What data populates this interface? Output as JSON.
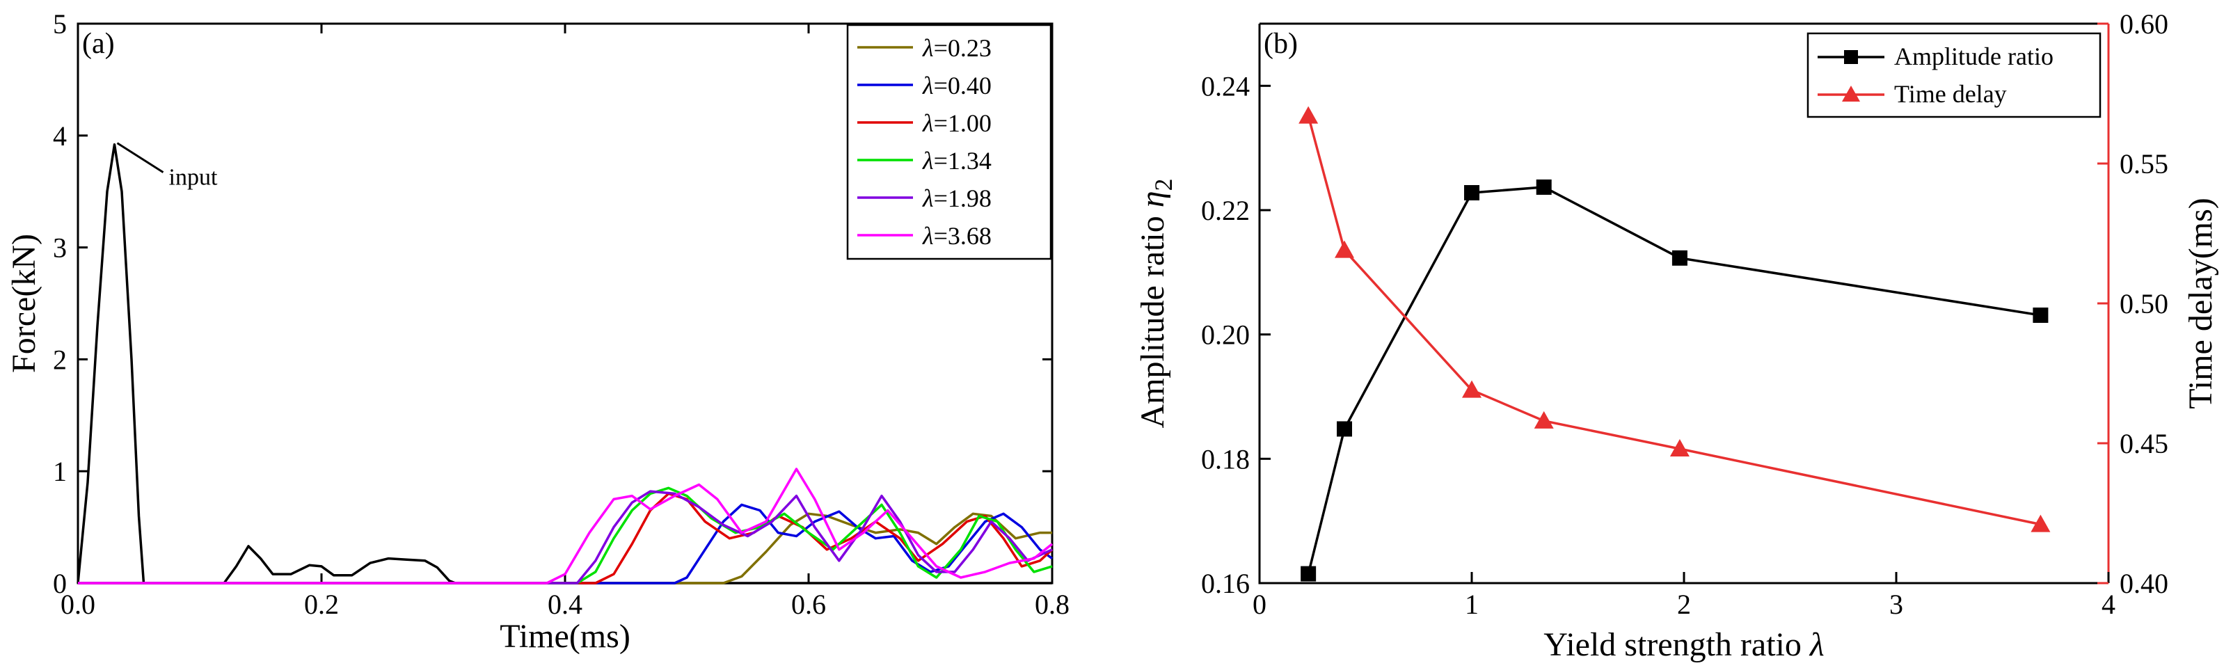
{
  "chart_data": [
    {
      "type": "line",
      "panel_label": "(a)",
      "xlabel": "Time(ms)",
      "ylabel": "Force(kN)",
      "xlim": [
        0.0,
        0.8
      ],
      "ylim": [
        0,
        5
      ],
      "xticks": [
        "0.0",
        "0.2",
        "0.4",
        "0.6",
        "0.8"
      ],
      "yticks": [
        "0",
        "1",
        "2",
        "3",
        "4",
        "5"
      ],
      "annotation": "input",
      "legend_position": "top-right",
      "series": [
        {
          "name": "input",
          "legend": false,
          "color": "#000000",
          "points": [
            [
              0,
              0
            ],
            [
              0.008,
              0.9
            ],
            [
              0.016,
              2.3
            ],
            [
              0.024,
              3.5
            ],
            [
              0.03,
              3.92
            ],
            [
              0.036,
              3.5
            ],
            [
              0.044,
              2.0
            ],
            [
              0.05,
              0.6
            ],
            [
              0.054,
              0
            ],
            [
              0.12,
              0
            ],
            [
              0.13,
              0.15
            ],
            [
              0.14,
              0.33
            ],
            [
              0.15,
              0.22
            ],
            [
              0.16,
              0.08
            ],
            [
              0.175,
              0.08
            ],
            [
              0.19,
              0.16
            ],
            [
              0.2,
              0.15
            ],
            [
              0.21,
              0.07
            ],
            [
              0.225,
              0.07
            ],
            [
              0.24,
              0.18
            ],
            [
              0.255,
              0.22
            ],
            [
              0.27,
              0.21
            ],
            [
              0.285,
              0.2
            ],
            [
              0.295,
              0.14
            ],
            [
              0.305,
              0.02
            ],
            [
              0.31,
              0
            ],
            [
              0.8,
              0
            ]
          ]
        },
        {
          "name": "λ=0.23",
          "legend_prefix": "λ",
          "legend_value": "=0.23",
          "color": "#807000",
          "points": [
            [
              0,
              0
            ],
            [
              0.53,
              0
            ],
            [
              0.545,
              0.06
            ],
            [
              0.565,
              0.28
            ],
            [
              0.585,
              0.52
            ],
            [
              0.6,
              0.62
            ],
            [
              0.615,
              0.6
            ],
            [
              0.635,
              0.52
            ],
            [
              0.655,
              0.45
            ],
            [
              0.675,
              0.48
            ],
            [
              0.69,
              0.45
            ],
            [
              0.705,
              0.35
            ],
            [
              0.72,
              0.5
            ],
            [
              0.735,
              0.62
            ],
            [
              0.75,
              0.6
            ],
            [
              0.77,
              0.4
            ],
            [
              0.79,
              0.45
            ],
            [
              0.8,
              0.45
            ]
          ]
        },
        {
          "name": "λ=0.40",
          "legend_prefix": "λ",
          "legend_value": "=0.40",
          "color": "#0000e0",
          "points": [
            [
              0,
              0
            ],
            [
              0.49,
              0
            ],
            [
              0.5,
              0.05
            ],
            [
              0.515,
              0.3
            ],
            [
              0.53,
              0.55
            ],
            [
              0.545,
              0.7
            ],
            [
              0.56,
              0.65
            ],
            [
              0.575,
              0.45
            ],
            [
              0.59,
              0.42
            ],
            [
              0.605,
              0.55
            ],
            [
              0.625,
              0.64
            ],
            [
              0.64,
              0.5
            ],
            [
              0.655,
              0.4
            ],
            [
              0.67,
              0.42
            ],
            [
              0.685,
              0.2
            ],
            [
              0.7,
              0.1
            ],
            [
              0.715,
              0.15
            ],
            [
              0.73,
              0.35
            ],
            [
              0.745,
              0.55
            ],
            [
              0.76,
              0.62
            ],
            [
              0.775,
              0.5
            ],
            [
              0.79,
              0.3
            ],
            [
              0.8,
              0.22
            ]
          ]
        },
        {
          "name": "λ=1.00",
          "legend_prefix": "λ",
          "legend_value": "=1.00",
          "color": "#e00000",
          "points": [
            [
              0,
              0
            ],
            [
              0.425,
              0
            ],
            [
              0.44,
              0.08
            ],
            [
              0.455,
              0.35
            ],
            [
              0.47,
              0.65
            ],
            [
              0.485,
              0.8
            ],
            [
              0.5,
              0.75
            ],
            [
              0.515,
              0.55
            ],
            [
              0.535,
              0.4
            ],
            [
              0.555,
              0.45
            ],
            [
              0.575,
              0.6
            ],
            [
              0.595,
              0.5
            ],
            [
              0.615,
              0.3
            ],
            [
              0.635,
              0.4
            ],
            [
              0.655,
              0.55
            ],
            [
              0.675,
              0.4
            ],
            [
              0.69,
              0.2
            ],
            [
              0.71,
              0.35
            ],
            [
              0.73,
              0.55
            ],
            [
              0.745,
              0.6
            ],
            [
              0.76,
              0.4
            ],
            [
              0.775,
              0.15
            ],
            [
              0.79,
              0.2
            ],
            [
              0.8,
              0.3
            ]
          ]
        },
        {
          "name": "λ=1.34",
          "legend_prefix": "λ",
          "legend_value": "=1.34",
          "color": "#00e000",
          "points": [
            [
              0,
              0
            ],
            [
              0.41,
              0
            ],
            [
              0.425,
              0.1
            ],
            [
              0.44,
              0.4
            ],
            [
              0.455,
              0.65
            ],
            [
              0.47,
              0.8
            ],
            [
              0.485,
              0.85
            ],
            [
              0.5,
              0.78
            ],
            [
              0.52,
              0.58
            ],
            [
              0.54,
              0.45
            ],
            [
              0.56,
              0.5
            ],
            [
              0.58,
              0.62
            ],
            [
              0.6,
              0.45
            ],
            [
              0.62,
              0.3
            ],
            [
              0.64,
              0.5
            ],
            [
              0.66,
              0.7
            ],
            [
              0.675,
              0.45
            ],
            [
              0.69,
              0.15
            ],
            [
              0.705,
              0.05
            ],
            [
              0.725,
              0.3
            ],
            [
              0.74,
              0.6
            ],
            [
              0.755,
              0.55
            ],
            [
              0.77,
              0.3
            ],
            [
              0.785,
              0.1
            ],
            [
              0.8,
              0.15
            ]
          ]
        },
        {
          "name": "λ=1.98",
          "legend_prefix": "λ",
          "legend_value": "=1.98",
          "color": "#8000e0",
          "points": [
            [
              0,
              0
            ],
            [
              0.41,
              0
            ],
            [
              0.425,
              0.2
            ],
            [
              0.44,
              0.5
            ],
            [
              0.455,
              0.72
            ],
            [
              0.47,
              0.82
            ],
            [
              0.49,
              0.8
            ],
            [
              0.51,
              0.68
            ],
            [
              0.53,
              0.52
            ],
            [
              0.55,
              0.42
            ],
            [
              0.57,
              0.55
            ],
            [
              0.59,
              0.78
            ],
            [
              0.605,
              0.5
            ],
            [
              0.625,
              0.2
            ],
            [
              0.645,
              0.5
            ],
            [
              0.66,
              0.78
            ],
            [
              0.675,
              0.55
            ],
            [
              0.69,
              0.25
            ],
            [
              0.705,
              0.1
            ],
            [
              0.72,
              0.1
            ],
            [
              0.735,
              0.3
            ],
            [
              0.75,
              0.55
            ],
            [
              0.765,
              0.4
            ],
            [
              0.78,
              0.2
            ],
            [
              0.8,
              0.3
            ]
          ]
        },
        {
          "name": "λ=3.68",
          "legend_prefix": "λ",
          "legend_value": "=3.68",
          "color": "#ff00ff",
          "points": [
            [
              0,
              0
            ],
            [
              0.385,
              0
            ],
            [
              0.4,
              0.08
            ],
            [
              0.42,
              0.45
            ],
            [
              0.44,
              0.75
            ],
            [
              0.455,
              0.78
            ],
            [
              0.47,
              0.66
            ],
            [
              0.49,
              0.78
            ],
            [
              0.51,
              0.88
            ],
            [
              0.525,
              0.75
            ],
            [
              0.545,
              0.45
            ],
            [
              0.565,
              0.55
            ],
            [
              0.59,
              1.02
            ],
            [
              0.605,
              0.75
            ],
            [
              0.625,
              0.3
            ],
            [
              0.645,
              0.45
            ],
            [
              0.665,
              0.65
            ],
            [
              0.685,
              0.4
            ],
            [
              0.705,
              0.15
            ],
            [
              0.725,
              0.05
            ],
            [
              0.745,
              0.1
            ],
            [
              0.765,
              0.18
            ],
            [
              0.785,
              0.22
            ],
            [
              0.8,
              0.35
            ]
          ]
        }
      ]
    },
    {
      "type": "line",
      "panel_label": "(b)",
      "xlabel_prefix": "Yield strength ratio ",
      "xlabel_symbol": "λ",
      "ylabel_left_prefix": "Amplitude ratio ",
      "ylabel_left_symbol": "η",
      "ylabel_left_subscript": "2",
      "ylabel_right": "Time delay(ms)",
      "xlim": [
        0,
        4
      ],
      "ylim_left": [
        0.16,
        0.25
      ],
      "ylim_right": [
        0.4,
        0.6
      ],
      "xticks": [
        "0",
        "1",
        "2",
        "3",
        "4"
      ],
      "yticks_left": [
        "0.16",
        "0.18",
        "0.20",
        "0.22",
        "0.24"
      ],
      "yticks_right": [
        "0.40",
        "0.45",
        "0.50",
        "0.55",
        "0.60"
      ],
      "right_axis_color": "#e83030",
      "legend_position": "top-right",
      "x": [
        0.23,
        0.4,
        1.0,
        1.34,
        1.98,
        3.68
      ],
      "series": [
        {
          "name": "Amplitude ratio",
          "axis": "left",
          "color": "#000000",
          "marker": "square",
          "values": [
            0.1615,
            0.1848,
            0.2228,
            0.2237,
            0.2123,
            0.2031
          ]
        },
        {
          "name": "Time delay",
          "axis": "right",
          "color": "#e83030",
          "marker": "triangle",
          "values": [
            0.567,
            0.519,
            0.469,
            0.458,
            0.448,
            0.421
          ]
        }
      ]
    }
  ]
}
